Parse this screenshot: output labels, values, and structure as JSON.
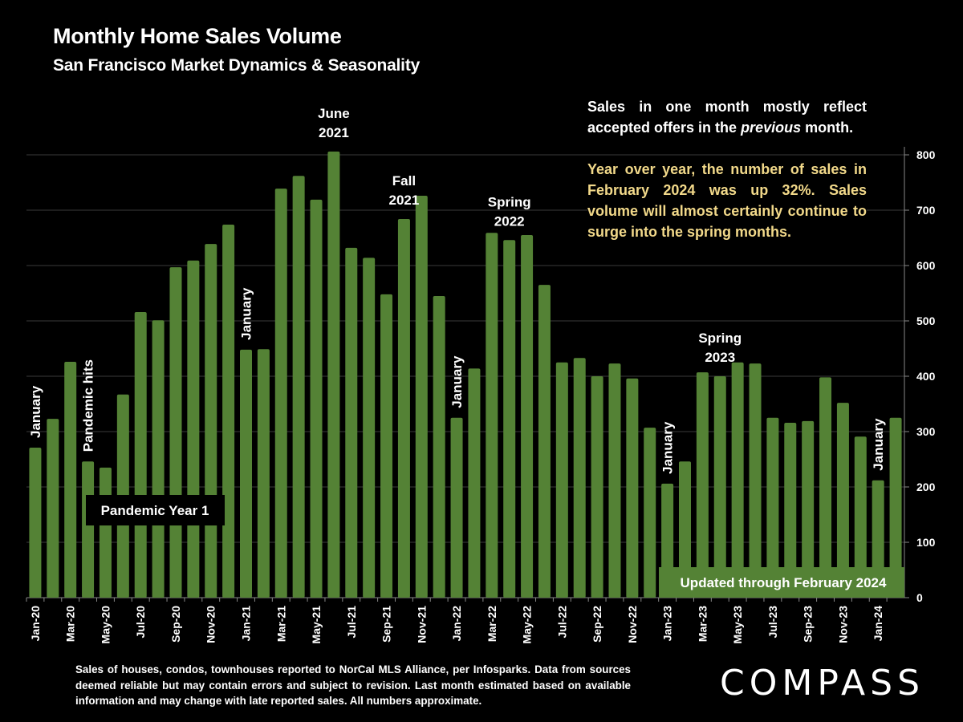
{
  "header": {
    "title": "Monthly Home Sales Volume",
    "subtitle": "San Francisco Market Dynamics & Seasonality"
  },
  "notes": {
    "note1_pre": "Sales in one month mostly reflect accepted offers in the ",
    "note1_italic": "previous",
    "note1_post": " month.",
    "note2": "Year over year, the number of sales in February 2024 was up 32%. Sales volume will almost certainly continue to surge into the spring months."
  },
  "footnote": "Sales of houses, condos, townhouses reported to NorCal MLS Alliance, per Infosparks. Data from sources deemed reliable but may contain errors and subject to revision. Last month estimated based on available information and may change with late reported sales. All numbers approximate.",
  "logo": "COMPASS",
  "colors": {
    "bar": "#548235",
    "background": "#000000",
    "highlight_text": "#f2d98a",
    "gridline": "#3a3a3a"
  },
  "chart_data": {
    "type": "bar",
    "title": "Monthly Home Sales Volume",
    "subtitle": "San Francisco Market Dynamics & Seasonality",
    "xlabel": "",
    "ylabel": "",
    "ylim": [
      0,
      800
    ],
    "yticks": [
      0,
      100,
      200,
      300,
      400,
      500,
      600,
      700,
      800
    ],
    "y_axis_position": "right",
    "grid": true,
    "categories": [
      "Jan-20",
      "Feb-20",
      "Mar-20",
      "Apr-20",
      "May-20",
      "Jun-20",
      "Jul-20",
      "Aug-20",
      "Sep-20",
      "Oct-20",
      "Nov-20",
      "Dec-20",
      "Jan-21",
      "Feb-21",
      "Mar-21",
      "Apr-21",
      "May-21",
      "Jun-21",
      "Jul-21",
      "Aug-21",
      "Sep-21",
      "Oct-21",
      "Nov-21",
      "Dec-21",
      "Jan-22",
      "Feb-22",
      "Mar-22",
      "Apr-22",
      "May-22",
      "Jun-22",
      "Jul-22",
      "Aug-22",
      "Sep-22",
      "Oct-22",
      "Nov-22",
      "Dec-22",
      "Jan-23",
      "Feb-23",
      "Mar-23",
      "Apr-23",
      "May-23",
      "Jun-23",
      "Jul-23",
      "Aug-23",
      "Sep-23",
      "Oct-23",
      "Nov-23",
      "Dec-23",
      "Jan-24",
      "Feb-24"
    ],
    "tick_labels": [
      "Jan-20",
      "Mar-20",
      "May-20",
      "Jul-20",
      "Sep-20",
      "Nov-20",
      "Jan-21",
      "Mar-21",
      "May-21",
      "Jul-21",
      "Sep-21",
      "Nov-21",
      "Jan-22",
      "Mar-22",
      "May-22",
      "Jul-22",
      "Sep-22",
      "Nov-22",
      "Jan-23",
      "Mar-23",
      "May-23",
      "Jul-23",
      "Sep-23",
      "Nov-23",
      "Jan-24"
    ],
    "values": [
      271,
      323,
      426,
      246,
      235,
      367,
      516,
      501,
      597,
      609,
      639,
      674,
      448,
      449,
      739,
      762,
      719,
      806,
      632,
      614,
      548,
      684,
      726,
      545,
      325,
      414,
      659,
      646,
      655,
      565,
      425,
      433,
      400,
      423,
      396,
      307,
      206,
      246,
      407,
      400,
      425,
      423,
      325,
      316,
      319,
      398,
      352,
      291,
      212,
      325
    ],
    "annotations": [
      {
        "text": "January",
        "index": 0,
        "orientation": "vertical"
      },
      {
        "text": "Pandemic hits",
        "index": 3,
        "orientation": "vertical"
      },
      {
        "text": "January",
        "index": 12,
        "orientation": "vertical"
      },
      {
        "text": "June",
        "text2": "2021",
        "index": 17,
        "orientation": "horizontal"
      },
      {
        "text": "Fall",
        "text2": "2021",
        "index": 21,
        "orientation": "horizontal"
      },
      {
        "text": "January",
        "index": 24,
        "orientation": "vertical"
      },
      {
        "text": "Spring",
        "text2": "2022",
        "index": 27,
        "orientation": "horizontal"
      },
      {
        "text": "January",
        "index": 36,
        "orientation": "vertical"
      },
      {
        "text": "Spring",
        "text2": "2023",
        "index": 39,
        "orientation": "horizontal"
      },
      {
        "text": "January",
        "index": 48,
        "orientation": "vertical"
      }
    ],
    "boxes": {
      "pandemic_year": "Pandemic Year 1",
      "updated": "Updated through February 2024"
    }
  }
}
